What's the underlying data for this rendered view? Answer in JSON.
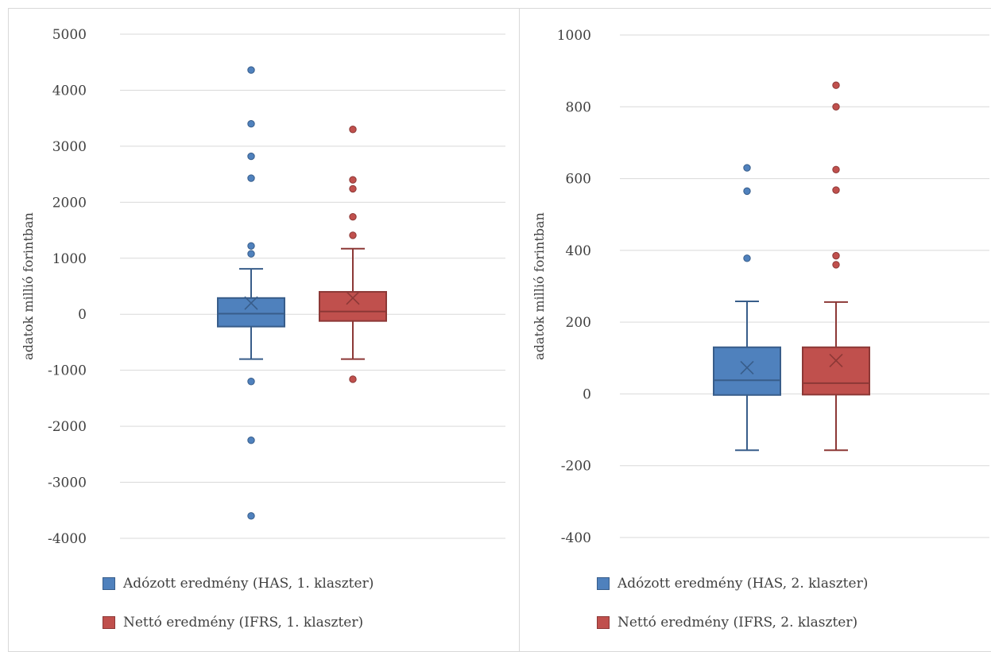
{
  "chart_data": [
    {
      "type": "box",
      "ylabel": "adatok millió forintban",
      "ylim": [
        -4000,
        5000
      ],
      "yticks": [
        "5000",
        "4000",
        "3000",
        "2000",
        "1000",
        "0",
        "-1000",
        "-2000",
        "-3000",
        "-4000"
      ],
      "ytick_values": [
        5000,
        4000,
        3000,
        2000,
        1000,
        0,
        -1000,
        -2000,
        -3000,
        -4000
      ],
      "grid": true,
      "legend_position": "bottom",
      "series": [
        {
          "name": "Adózott eredmény (HAS, 1. klaszter)",
          "color": "#4f81bd",
          "border": "#385d8a",
          "whisker_low": -800,
          "q1": -220,
          "median": 10,
          "q3": 290,
          "whisker_high": 810,
          "mean": 200,
          "outliers": [
            4360,
            3400,
            2820,
            2430,
            1220,
            1080,
            -1200,
            -2250,
            -3600
          ]
        },
        {
          "name": "Nettó eredmény (IFRS, 1. klaszter)",
          "color": "#c0504d",
          "border": "#8c3836",
          "whisker_low": -800,
          "q1": -120,
          "median": 50,
          "q3": 400,
          "whisker_high": 1170,
          "mean": 290,
          "outliers": [
            3300,
            2400,
            2240,
            1740,
            1410,
            -1160
          ]
        }
      ]
    },
    {
      "type": "box",
      "ylabel": "adatok millió forintban",
      "ylim": [
        -400,
        1000
      ],
      "yticks": [
        "1000",
        "800",
        "600",
        "400",
        "200",
        "0",
        "-200",
        "-400"
      ],
      "ytick_values": [
        1000,
        800,
        600,
        400,
        200,
        0,
        -200,
        -400
      ],
      "grid": true,
      "legend_position": "bottom",
      "series": [
        {
          "name": "Adózott eredmény (HAS, 2. klaszter)",
          "color": "#4f81bd",
          "border": "#385d8a",
          "whisker_low": -157,
          "q1": -3,
          "median": 38,
          "q3": 130,
          "whisker_high": 258,
          "mean": 73,
          "outliers": [
            630,
            565,
            378
          ]
        },
        {
          "name": "Nettó eredmény (IFRS, 2. klaszter)",
          "color": "#c0504d",
          "border": "#8c3836",
          "whisker_low": -157,
          "q1": -2,
          "median": 30,
          "q3": 130,
          "whisker_high": 256,
          "mean": 93,
          "outliers": [
            860,
            800,
            625,
            568,
            385,
            360
          ]
        }
      ]
    }
  ]
}
